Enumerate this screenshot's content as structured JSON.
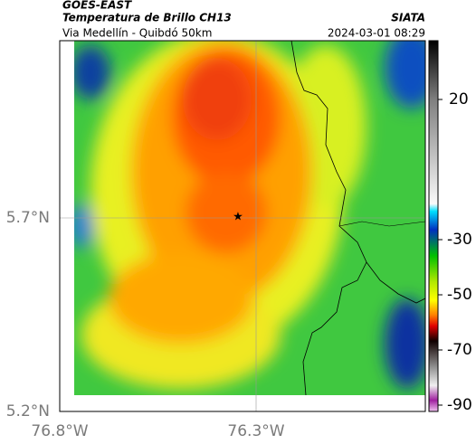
{
  "header": {
    "source": "GOES-EAST",
    "product": "Temperatura de Brillo CH13",
    "region": "Via Medellín - Quibdó 50km",
    "agency": "SIATA",
    "timestamp": "2024-03-01 08:29"
  },
  "axes": {
    "latitude_labels": [
      "5.7°N",
      "5.2°N"
    ],
    "longitude_labels": [
      "76.8°W",
      "76.3°W"
    ]
  },
  "colorbar": {
    "ticks": [
      20,
      -30,
      -50,
      -70,
      -90
    ]
  }
}
